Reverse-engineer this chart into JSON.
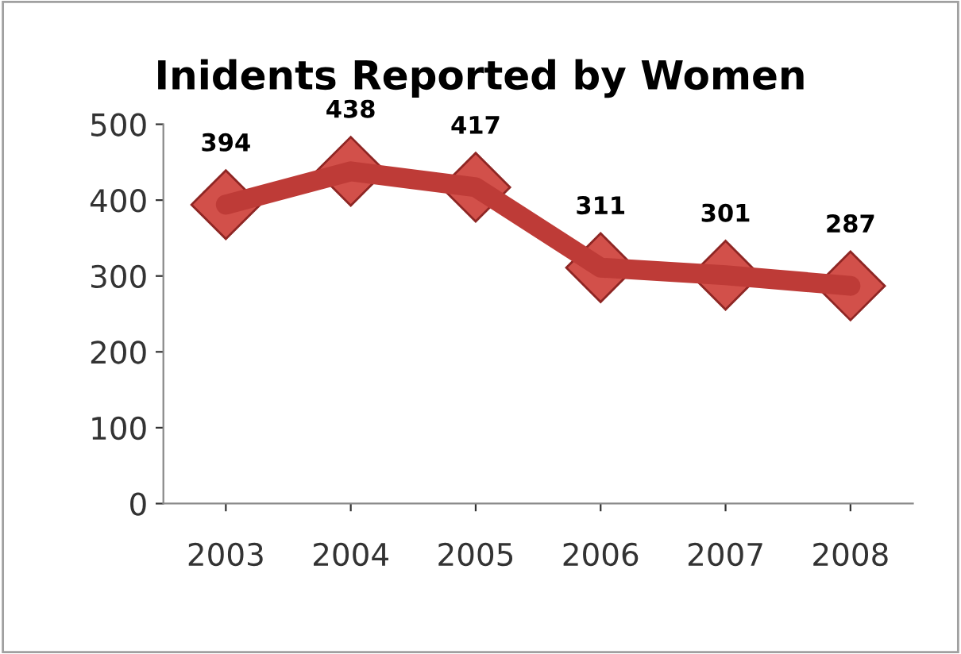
{
  "chart_data": {
    "type": "line",
    "title": "Inidents Reported by Women",
    "categories": [
      "2003",
      "2004",
      "2005",
      "2006",
      "2007",
      "2008"
    ],
    "series": [
      {
        "color": "#be3b37",
        "values": [
          394,
          438,
          417,
          311,
          301,
          287
        ]
      }
    ],
    "ylim": [
      0,
      500
    ],
    "yticks": [
      0,
      100,
      200,
      300,
      400,
      500
    ],
    "grid": false,
    "marker": "diamond",
    "line_style": "solid",
    "data_labels": true
  }
}
